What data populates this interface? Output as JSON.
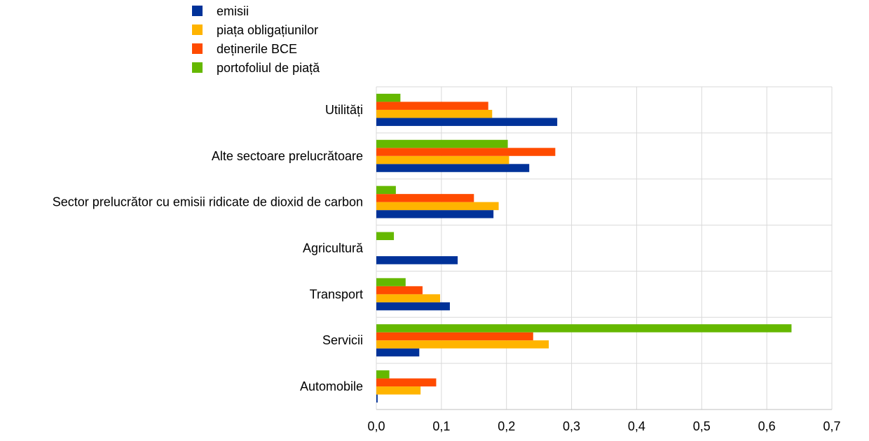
{
  "chart_data": {
    "type": "bar",
    "orientation": "horizontal",
    "title": "",
    "xlabel": "",
    "ylabel": "",
    "categories": [
      "Utilități",
      "Alte sectoare prelucrătoare",
      "Sector prelucrător cu emisii ridicate de dioxid de carbon",
      "Agricultură",
      "Transport",
      "Servicii",
      "Automobile"
    ],
    "series": [
      {
        "name": "emisii",
        "color": "#003299",
        "values": [
          0.278,
          0.235,
          0.18,
          0.125,
          0.113,
          0.066,
          0.002
        ]
      },
      {
        "name": "piața obligațiunilor",
        "color": "#FFB400",
        "values": [
          0.178,
          0.204,
          0.188,
          0.0,
          0.098,
          0.265,
          0.068
        ]
      },
      {
        "name": "deținerile BCE",
        "color": "#FF4B00",
        "values": [
          0.172,
          0.275,
          0.15,
          0.0,
          0.071,
          0.241,
          0.092
        ]
      },
      {
        "name": "portofoliul de piață",
        "color": "#65B800",
        "values": [
          0.037,
          0.202,
          0.03,
          0.027,
          0.045,
          0.638,
          0.02
        ]
      }
    ],
    "xlim": [
      0,
      0.7
    ],
    "ticks": [
      0,
      0.1,
      0.2,
      0.3,
      0.4,
      0.5,
      0.6,
      0.7
    ],
    "tick_labels": [
      "0,0",
      "0,1",
      "0,2",
      "0,3",
      "0,4",
      "0,5",
      "0,6",
      "0,7"
    ],
    "grid": true,
    "legend_position": "top-left"
  }
}
